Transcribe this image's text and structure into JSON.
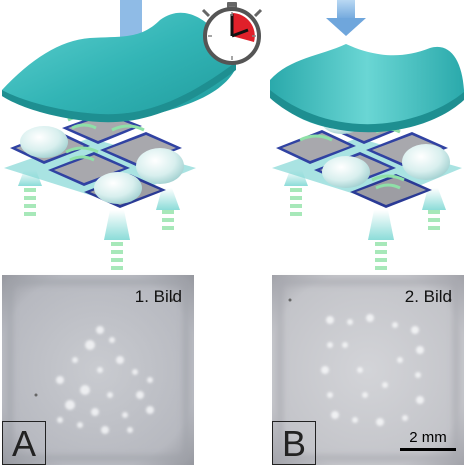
{
  "panels": [
    {
      "id": "A",
      "caption": "1. Bild",
      "letter": "A"
    },
    {
      "id": "B",
      "caption": "2. Bild",
      "letter": "B",
      "scalebar_label": "2 mm"
    }
  ],
  "colors": {
    "film": "#3ebfbf",
    "film_dark": "#1f9e9f",
    "frame": "#2e3f9e",
    "chip": "#a9a9a9",
    "glow": "#9de5b5",
    "arrow": "#8ab9e6",
    "timer_red": "#e0202a"
  },
  "icons": [
    "stopwatch-icon",
    "down-arrow-icon"
  ]
}
